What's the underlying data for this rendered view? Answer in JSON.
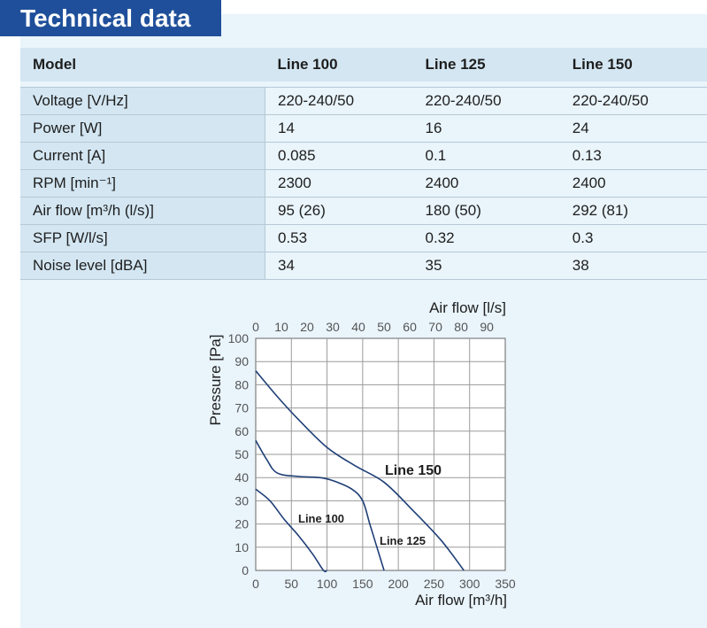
{
  "title": "Technical data",
  "table": {
    "headers": [
      "Model",
      "Line 100",
      "Line 125",
      "Line 150"
    ],
    "rows": [
      [
        "Voltage [V/Hz]",
        "220-240/50",
        "220-240/50",
        "220-240/50"
      ],
      [
        "Power [W]",
        "14",
        "16",
        "24"
      ],
      [
        "Current [A]",
        "0.085",
        "0.1",
        "0.13"
      ],
      [
        "RPM [min⁻¹]",
        "2300",
        "2400",
        "2400"
      ],
      [
        "Air flow [m³/h (l/s)]",
        "95 (26)",
        "180 (50)",
        "292 (81)"
      ],
      [
        "SFP [W/l/s]",
        "0.53",
        "0.32",
        "0.3"
      ],
      [
        "Noise level [dBA]",
        "34",
        "35",
        "38"
      ]
    ]
  },
  "chart_data": {
    "type": "line",
    "xlabel": "Air flow [m³/h]",
    "x2label": "Air flow [l/s]",
    "ylabel": "Pressure [Pa]",
    "xlim": [
      0,
      350
    ],
    "x2lim": [
      0,
      97.2
    ],
    "ylim": [
      0,
      100
    ],
    "xticks": [
      0,
      50,
      100,
      150,
      200,
      250,
      300,
      350
    ],
    "x2ticks": [
      0,
      10,
      20,
      30,
      40,
      50,
      60,
      70,
      80,
      90
    ],
    "yticks": [
      0,
      10,
      20,
      30,
      40,
      50,
      60,
      70,
      80,
      90,
      100
    ],
    "grid": true,
    "series": [
      {
        "name": "Line 100",
        "x": [
          0,
          20,
          40,
          60,
          80,
          95,
          100
        ],
        "y": [
          35,
          30,
          22,
          15,
          7,
          0,
          0
        ]
      },
      {
        "name": "Line 125",
        "x": [
          0,
          15,
          30,
          60,
          90,
          110,
          135,
          150,
          160,
          170,
          180
        ],
        "y": [
          56,
          48,
          42,
          40.5,
          40,
          38.5,
          35,
          30,
          20,
          10,
          0
        ]
      },
      {
        "name": "Line 150",
        "x": [
          0,
          30,
          60,
          100,
          140,
          180,
          220,
          260,
          292
        ],
        "y": [
          86,
          75,
          65,
          53,
          45,
          38,
          26,
          13,
          0
        ]
      }
    ]
  }
}
